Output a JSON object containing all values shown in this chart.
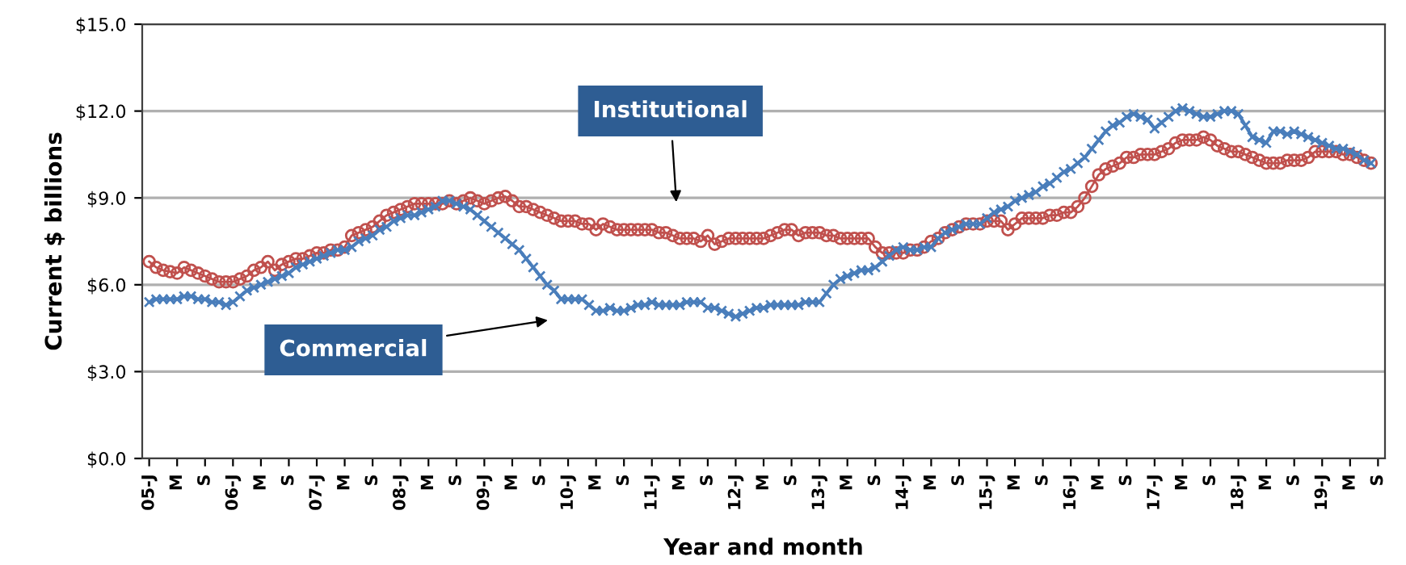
{
  "chart_data": {
    "type": "line",
    "xlabel": "Year and month",
    "ylabel": "Current $ billions",
    "categories": [
      "05-J",
      null,
      null,
      null,
      "M",
      null,
      null,
      null,
      "S",
      null,
      null,
      null,
      "06-J",
      null,
      null,
      null,
      "M",
      null,
      null,
      null,
      "S",
      null,
      null,
      null,
      "07-J",
      null,
      null,
      null,
      "M",
      null,
      null,
      null,
      "S",
      null,
      null,
      null,
      "08-J",
      null,
      null,
      null,
      "M",
      null,
      null,
      null,
      "S",
      null,
      null,
      null,
      "09-J",
      null,
      null,
      null,
      "M",
      null,
      null,
      null,
      "S",
      null,
      null,
      null,
      "10-J",
      null,
      null,
      null,
      "M",
      null,
      null,
      null,
      "S",
      null,
      null,
      null,
      "11-J",
      null,
      null,
      null,
      "M",
      null,
      null,
      null,
      "S",
      null,
      null,
      null,
      "12-J",
      null,
      null,
      null,
      "M",
      null,
      null,
      null,
      "S",
      null,
      null,
      null,
      "13-J",
      null,
      null,
      null,
      "M",
      null,
      null,
      null,
      "S",
      null,
      null,
      null,
      "14-J",
      null,
      null,
      null,
      "M",
      null,
      null,
      null,
      "S",
      null,
      null,
      null,
      "15-J",
      null,
      null,
      null,
      "M",
      null,
      null,
      null,
      "S",
      null,
      null,
      null,
      "16-J",
      null,
      null,
      null,
      "M",
      null,
      null,
      null,
      "S",
      null,
      null,
      null,
      "17-J",
      null,
      null,
      null,
      "M",
      null,
      null,
      null,
      "S",
      null,
      null,
      null,
      "18-J",
      null,
      null,
      null,
      "M",
      null,
      null,
      null,
      "S",
      null,
      null,
      null,
      "19-J",
      null,
      null,
      null,
      "M",
      null,
      null,
      null,
      "S"
    ],
    "series": [
      {
        "color": "#4a7ebb",
        "marker": "cross",
        "values": [
          5.4,
          5.5,
          5.5,
          5.5,
          5.5,
          5.6,
          5.6,
          5.5,
          5.5,
          5.4,
          5.4,
          5.3,
          5.4,
          5.6,
          5.8,
          5.9,
          6.0,
          6.1,
          6.2,
          6.3,
          6.4,
          6.6,
          6.7,
          6.8,
          6.9,
          7.0,
          7.1,
          7.2,
          7.2,
          7.3,
          7.5,
          7.6,
          7.7,
          7.9,
          8.0,
          8.2,
          8.3,
          8.4,
          8.4,
          8.5,
          8.6,
          8.7,
          8.9,
          8.9,
          8.8,
          8.7,
          8.6,
          8.4,
          8.2,
          8.0,
          7.8,
          7.6,
          7.4,
          7.2,
          6.9,
          6.6,
          6.3,
          6.0,
          5.8,
          5.5,
          5.5,
          5.5,
          5.5,
          5.3,
          5.1,
          5.1,
          5.2,
          5.1,
          5.1,
          5.2,
          5.3,
          5.3,
          5.4,
          5.3,
          5.3,
          5.3,
          5.3,
          5.4,
          5.4,
          5.4,
          5.2,
          5.2,
          5.1,
          5.0,
          4.9,
          5.0,
          5.1,
          5.2,
          5.2,
          5.3,
          5.3,
          5.3,
          5.3,
          5.3,
          5.4,
          5.4,
          5.4,
          5.7,
          6.0,
          6.2,
          6.3,
          6.4,
          6.5,
          6.5,
          6.6,
          6.8,
          7.0,
          7.2,
          7.3,
          7.2,
          7.2,
          7.3,
          7.3,
          7.6,
          7.8,
          7.9,
          8.0,
          8.1,
          8.1,
          8.1,
          8.3,
          8.5,
          8.6,
          8.7,
          8.9,
          9.0,
          9.1,
          9.2,
          9.4,
          9.5,
          9.7,
          9.9,
          10.0,
          10.2,
          10.4,
          10.7,
          11.0,
          11.3,
          11.5,
          11.6,
          11.8,
          11.9,
          11.8,
          11.7,
          11.4,
          11.6,
          11.8,
          12.0,
          12.1,
          12.0,
          11.9,
          11.8,
          11.8,
          11.9,
          12.0,
          12.0,
          11.9,
          11.5,
          11.1,
          11.0,
          10.9,
          11.3,
          11.3,
          11.2,
          11.3,
          11.2,
          11.1,
          11.0,
          10.9,
          10.8,
          10.7,
          10.7,
          10.6,
          10.5,
          10.3,
          10.2,
          null
        ]
      },
      {
        "color": "#c0504d",
        "marker": "circle",
        "values": [
          6.8,
          6.6,
          6.5,
          6.45,
          6.4,
          6.6,
          6.5,
          6.4,
          6.3,
          6.2,
          6.1,
          6.1,
          6.1,
          6.2,
          6.3,
          6.5,
          6.6,
          6.8,
          6.5,
          6.7,
          6.8,
          6.9,
          6.9,
          7.0,
          7.1,
          7.1,
          7.2,
          7.2,
          7.3,
          7.7,
          7.8,
          7.9,
          8.0,
          8.2,
          8.4,
          8.5,
          8.6,
          8.7,
          8.8,
          8.8,
          8.8,
          8.8,
          8.8,
          8.9,
          8.8,
          8.9,
          9.0,
          8.9,
          8.8,
          8.9,
          9.0,
          9.05,
          8.9,
          8.7,
          8.7,
          8.6,
          8.5,
          8.4,
          8.3,
          8.2,
          8.2,
          8.2,
          8.1,
          8.1,
          7.9,
          8.1,
          8.0,
          7.9,
          7.9,
          7.9,
          7.9,
          7.9,
          7.9,
          7.8,
          7.8,
          7.7,
          7.6,
          7.6,
          7.6,
          7.5,
          7.7,
          7.4,
          7.5,
          7.6,
          7.6,
          7.6,
          7.6,
          7.6,
          7.6,
          7.7,
          7.8,
          7.9,
          7.9,
          7.7,
          7.8,
          7.8,
          7.8,
          7.7,
          7.7,
          7.6,
          7.6,
          7.6,
          7.6,
          7.6,
          7.3,
          7.1,
          7.1,
          7.1,
          7.1,
          7.2,
          7.2,
          7.3,
          7.5,
          7.6,
          7.8,
          7.9,
          8.0,
          8.1,
          8.1,
          8.1,
          8.2,
          8.2,
          8.2,
          7.9,
          8.1,
          8.3,
          8.3,
          8.3,
          8.3,
          8.4,
          8.4,
          8.5,
          8.5,
          8.7,
          9.0,
          9.4,
          9.8,
          10.0,
          10.1,
          10.2,
          10.4,
          10.4,
          10.5,
          10.5,
          10.5,
          10.6,
          10.7,
          10.9,
          11.0,
          11.0,
          11.0,
          11.1,
          11.0,
          10.8,
          10.7,
          10.6,
          10.6,
          10.5,
          10.4,
          10.3,
          10.2,
          10.2,
          10.2,
          10.3,
          10.3,
          10.3,
          10.4,
          10.6,
          10.6,
          10.6,
          10.6,
          10.5,
          10.5,
          10.4,
          10.3,
          10.2,
          null
        ]
      }
    ],
    "annotations": [
      "Institutional",
      "Commercial"
    ],
    "ylim": [
      0,
      15
    ],
    "yticks": [
      {
        "value": 0,
        "label": "$0.0"
      },
      {
        "value": 3,
        "label": "$3.0"
      },
      {
        "value": 6,
        "label": "$6.0"
      },
      {
        "value": 9,
        "label": "$9.0"
      },
      {
        "value": 12,
        "label": "$12.0"
      },
      {
        "value": 15,
        "label": "$15.0"
      }
    ],
    "grid": "y",
    "legend": false
  }
}
